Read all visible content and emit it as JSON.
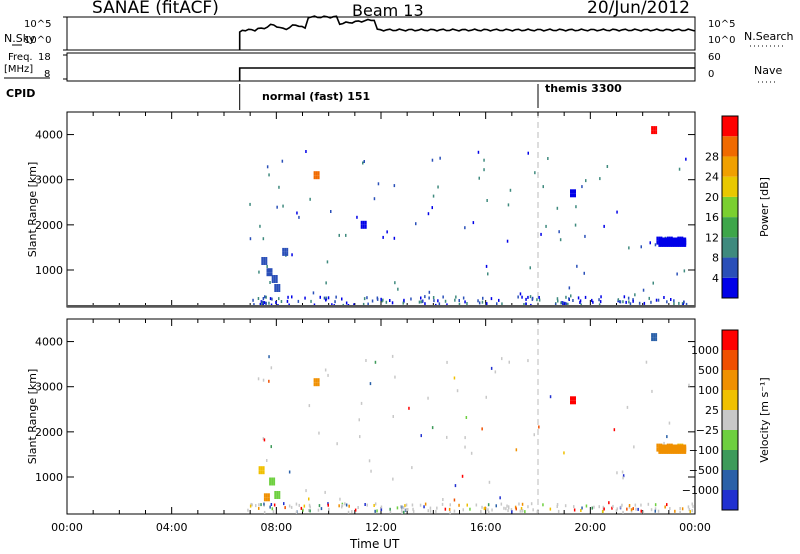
{
  "header": {
    "station": "SANAE (fitACF)",
    "beam": "Beam 13",
    "date": "20/Jun/2012"
  },
  "panels": {
    "nsky": {
      "label": "N.Sky",
      "right_label": "N.Search",
      "left_ticks": [
        "10^5",
        "10^0"
      ],
      "right_ticks": [
        "10^5",
        "10^0"
      ]
    },
    "freq": {
      "label_line1": "Freq.",
      "label_line2": "[MHz]",
      "right_label": "Nave",
      "left_ticks": [
        "18",
        "8"
      ],
      "right_ticks": [
        "60",
        "0"
      ]
    },
    "cpid": {
      "label": "CPID",
      "modes": [
        {
          "name": "normal (fast) 151",
          "start_hour": 6.6
        },
        {
          "name": "themis 3300",
          "start_hour": 18.0
        }
      ]
    }
  },
  "chart_data": [
    {
      "type": "heatmap",
      "title": "",
      "quantity": "Power",
      "colorbar_label": "Power [dB]",
      "ylabel": "Slant Range [km]",
      "xlabel": "",
      "xlim": [
        0,
        24
      ],
      "ylim": [
        180,
        4500
      ],
      "yticks": [
        "1000",
        "2000",
        "3000",
        "4000"
      ],
      "colorbar_ticks": [
        "4",
        "8",
        "12",
        "16",
        "20",
        "24",
        "28"
      ],
      "colorbar_colors": [
        "#0000e8",
        "#2a4fb8",
        "#3f8a7e",
        "#3ea64a",
        "#7ad030",
        "#e8c800",
        "#f0a000",
        "#f06a00",
        "#ff0000"
      ],
      "approximate_cells": [
        {
          "hour": 7.5,
          "range_km": 1200,
          "color": "#2a4fb8"
        },
        {
          "hour": 7.7,
          "range_km": 950,
          "color": "#2a4fb8"
        },
        {
          "hour": 7.9,
          "range_km": 800,
          "color": "#2a4fb8"
        },
        {
          "hour": 8.0,
          "range_km": 600,
          "color": "#2a4fb8"
        },
        {
          "hour": 8.3,
          "range_km": 1400,
          "color": "#2a4fb8"
        },
        {
          "hour": 11.3,
          "range_km": 2000,
          "color": "#0000e8"
        },
        {
          "hour": 19.3,
          "range_km": 2700,
          "color": "#0000e8"
        },
        {
          "hour": 22.6,
          "range_km": 1650,
          "color": "#0000e8"
        },
        {
          "hour": 23.0,
          "range_km": 1650,
          "color": "#0000e8"
        },
        {
          "hour": 23.4,
          "range_km": 1650,
          "color": "#0000e8"
        },
        {
          "hour": 22.4,
          "range_km": 4100,
          "color": "#ff0000"
        },
        {
          "hour": 9.5,
          "range_km": 3100,
          "color": "#f06a00"
        }
      ]
    },
    {
      "type": "heatmap",
      "title": "",
      "quantity": "Velocity",
      "colorbar_label": "Velocity [m s⁻¹]",
      "ylabel": "Slant Range [km]",
      "xlabel": "Time UT",
      "xlim": [
        0,
        24
      ],
      "ylim": [
        180,
        4500
      ],
      "yticks": [
        "1000",
        "2000",
        "3000",
        "4000"
      ],
      "xticks": [
        "00:00",
        "04:00",
        "08:00",
        "12:00",
        "16:00",
        "20:00",
        "00:00"
      ],
      "colorbar_ticks": [
        "1000",
        "500",
        "100",
        "25",
        "−25",
        "−100",
        "−500",
        "−1000"
      ],
      "colorbar_colors": [
        "#2030d0",
        "#2a60a8",
        "#3d9a5a",
        "#6ed040",
        "#c8c8c8",
        "#f0c000",
        "#f09000",
        "#f05000",
        "#ff0000"
      ],
      "approximate_cells": [
        {
          "hour": 7.4,
          "range_km": 1150,
          "color": "#f0c000"
        },
        {
          "hour": 7.8,
          "range_km": 900,
          "color": "#6ed040"
        },
        {
          "hour": 8.0,
          "range_km": 600,
          "color": "#6ed040"
        },
        {
          "hour": 7.6,
          "range_km": 550,
          "color": "#f09000"
        },
        {
          "hour": 19.3,
          "range_km": 2700,
          "color": "#ff0000"
        },
        {
          "hour": 22.6,
          "range_km": 1650,
          "color": "#f09000"
        },
        {
          "hour": 23.0,
          "range_km": 1650,
          "color": "#f09000"
        },
        {
          "hour": 23.4,
          "range_km": 1650,
          "color": "#f0c000"
        },
        {
          "hour": 22.4,
          "range_km": 4100,
          "color": "#2a60a8"
        },
        {
          "hour": 9.5,
          "range_km": 3100,
          "color": "#f09000"
        }
      ]
    }
  ]
}
